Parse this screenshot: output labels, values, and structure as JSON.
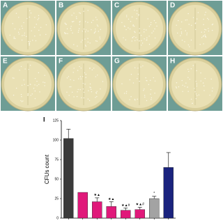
{
  "panels": {
    "labels": [
      "A",
      "B",
      "C",
      "D",
      "E",
      "F",
      "G",
      "H"
    ]
  },
  "chart_data": {
    "type": "bar",
    "panel_label": "I",
    "ylabel": "CFUs count",
    "categories": [
      null,
      null,
      null,
      null,
      null,
      null,
      null,
      null
    ],
    "values": [
      102,
      33,
      21,
      15,
      10,
      11,
      25,
      65
    ],
    "errors": [
      12,
      null,
      5,
      6,
      3,
      3,
      3,
      19
    ],
    "colors": [
      "#3a3a3a",
      "#e0197a",
      "#e0197a",
      "#e0197a",
      "#e0197a",
      "#e0197a",
      "#a3a3a3",
      "#1a237e"
    ],
    "annotations": [
      null,
      null,
      "★▲",
      "★▲",
      "★▲#",
      "★▲#",
      "*",
      null
    ],
    "ylim": [
      0,
      125
    ],
    "yticks": [
      0,
      25,
      50,
      75,
      100,
      125
    ]
  }
}
